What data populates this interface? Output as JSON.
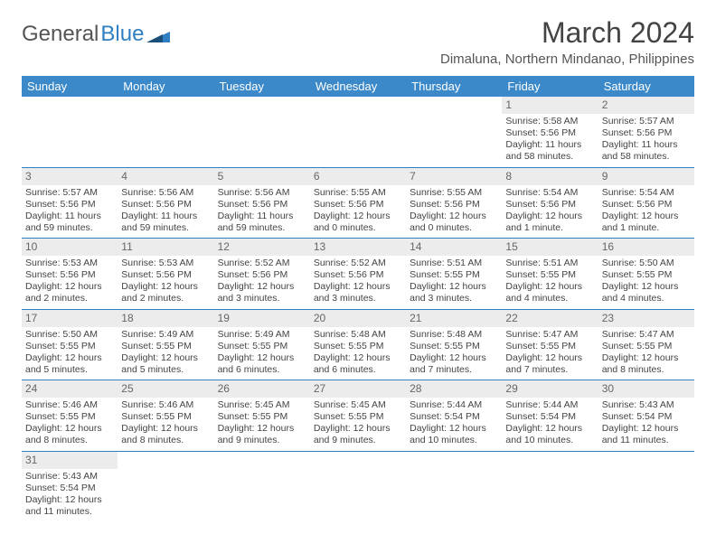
{
  "logo": {
    "text1": "General",
    "text2": "Blue"
  },
  "title": "March 2024",
  "location": "Dimaluna, Northern Mindanao, Philippines",
  "colors": {
    "header_bg": "#3b89c9",
    "header_text": "#ffffff",
    "daynum_bg": "#ececec",
    "row_border": "#2f7fc2",
    "text": "#444444"
  },
  "weekdays": [
    "Sunday",
    "Monday",
    "Tuesday",
    "Wednesday",
    "Thursday",
    "Friday",
    "Saturday"
  ],
  "weeks": [
    [
      null,
      null,
      null,
      null,
      null,
      {
        "n": "1",
        "sr": "Sunrise: 5:58 AM",
        "ss": "Sunset: 5:56 PM",
        "dl": "Daylight: 11 hours and 58 minutes."
      },
      {
        "n": "2",
        "sr": "Sunrise: 5:57 AM",
        "ss": "Sunset: 5:56 PM",
        "dl": "Daylight: 11 hours and 58 minutes."
      }
    ],
    [
      {
        "n": "3",
        "sr": "Sunrise: 5:57 AM",
        "ss": "Sunset: 5:56 PM",
        "dl": "Daylight: 11 hours and 59 minutes."
      },
      {
        "n": "4",
        "sr": "Sunrise: 5:56 AM",
        "ss": "Sunset: 5:56 PM",
        "dl": "Daylight: 11 hours and 59 minutes."
      },
      {
        "n": "5",
        "sr": "Sunrise: 5:56 AM",
        "ss": "Sunset: 5:56 PM",
        "dl": "Daylight: 11 hours and 59 minutes."
      },
      {
        "n": "6",
        "sr": "Sunrise: 5:55 AM",
        "ss": "Sunset: 5:56 PM",
        "dl": "Daylight: 12 hours and 0 minutes."
      },
      {
        "n": "7",
        "sr": "Sunrise: 5:55 AM",
        "ss": "Sunset: 5:56 PM",
        "dl": "Daylight: 12 hours and 0 minutes."
      },
      {
        "n": "8",
        "sr": "Sunrise: 5:54 AM",
        "ss": "Sunset: 5:56 PM",
        "dl": "Daylight: 12 hours and 1 minute."
      },
      {
        "n": "9",
        "sr": "Sunrise: 5:54 AM",
        "ss": "Sunset: 5:56 PM",
        "dl": "Daylight: 12 hours and 1 minute."
      }
    ],
    [
      {
        "n": "10",
        "sr": "Sunrise: 5:53 AM",
        "ss": "Sunset: 5:56 PM",
        "dl": "Daylight: 12 hours and 2 minutes."
      },
      {
        "n": "11",
        "sr": "Sunrise: 5:53 AM",
        "ss": "Sunset: 5:56 PM",
        "dl": "Daylight: 12 hours and 2 minutes."
      },
      {
        "n": "12",
        "sr": "Sunrise: 5:52 AM",
        "ss": "Sunset: 5:56 PM",
        "dl": "Daylight: 12 hours and 3 minutes."
      },
      {
        "n": "13",
        "sr": "Sunrise: 5:52 AM",
        "ss": "Sunset: 5:56 PM",
        "dl": "Daylight: 12 hours and 3 minutes."
      },
      {
        "n": "14",
        "sr": "Sunrise: 5:51 AM",
        "ss": "Sunset: 5:55 PM",
        "dl": "Daylight: 12 hours and 3 minutes."
      },
      {
        "n": "15",
        "sr": "Sunrise: 5:51 AM",
        "ss": "Sunset: 5:55 PM",
        "dl": "Daylight: 12 hours and 4 minutes."
      },
      {
        "n": "16",
        "sr": "Sunrise: 5:50 AM",
        "ss": "Sunset: 5:55 PM",
        "dl": "Daylight: 12 hours and 4 minutes."
      }
    ],
    [
      {
        "n": "17",
        "sr": "Sunrise: 5:50 AM",
        "ss": "Sunset: 5:55 PM",
        "dl": "Daylight: 12 hours and 5 minutes."
      },
      {
        "n": "18",
        "sr": "Sunrise: 5:49 AM",
        "ss": "Sunset: 5:55 PM",
        "dl": "Daylight: 12 hours and 5 minutes."
      },
      {
        "n": "19",
        "sr": "Sunrise: 5:49 AM",
        "ss": "Sunset: 5:55 PM",
        "dl": "Daylight: 12 hours and 6 minutes."
      },
      {
        "n": "20",
        "sr": "Sunrise: 5:48 AM",
        "ss": "Sunset: 5:55 PM",
        "dl": "Daylight: 12 hours and 6 minutes."
      },
      {
        "n": "21",
        "sr": "Sunrise: 5:48 AM",
        "ss": "Sunset: 5:55 PM",
        "dl": "Daylight: 12 hours and 7 minutes."
      },
      {
        "n": "22",
        "sr": "Sunrise: 5:47 AM",
        "ss": "Sunset: 5:55 PM",
        "dl": "Daylight: 12 hours and 7 minutes."
      },
      {
        "n": "23",
        "sr": "Sunrise: 5:47 AM",
        "ss": "Sunset: 5:55 PM",
        "dl": "Daylight: 12 hours and 8 minutes."
      }
    ],
    [
      {
        "n": "24",
        "sr": "Sunrise: 5:46 AM",
        "ss": "Sunset: 5:55 PM",
        "dl": "Daylight: 12 hours and 8 minutes."
      },
      {
        "n": "25",
        "sr": "Sunrise: 5:46 AM",
        "ss": "Sunset: 5:55 PM",
        "dl": "Daylight: 12 hours and 8 minutes."
      },
      {
        "n": "26",
        "sr": "Sunrise: 5:45 AM",
        "ss": "Sunset: 5:55 PM",
        "dl": "Daylight: 12 hours and 9 minutes."
      },
      {
        "n": "27",
        "sr": "Sunrise: 5:45 AM",
        "ss": "Sunset: 5:55 PM",
        "dl": "Daylight: 12 hours and 9 minutes."
      },
      {
        "n": "28",
        "sr": "Sunrise: 5:44 AM",
        "ss": "Sunset: 5:54 PM",
        "dl": "Daylight: 12 hours and 10 minutes."
      },
      {
        "n": "29",
        "sr": "Sunrise: 5:44 AM",
        "ss": "Sunset: 5:54 PM",
        "dl": "Daylight: 12 hours and 10 minutes."
      },
      {
        "n": "30",
        "sr": "Sunrise: 5:43 AM",
        "ss": "Sunset: 5:54 PM",
        "dl": "Daylight: 12 hours and 11 minutes."
      }
    ],
    [
      {
        "n": "31",
        "sr": "Sunrise: 5:43 AM",
        "ss": "Sunset: 5:54 PM",
        "dl": "Daylight: 12 hours and 11 minutes."
      },
      null,
      null,
      null,
      null,
      null,
      null
    ]
  ]
}
